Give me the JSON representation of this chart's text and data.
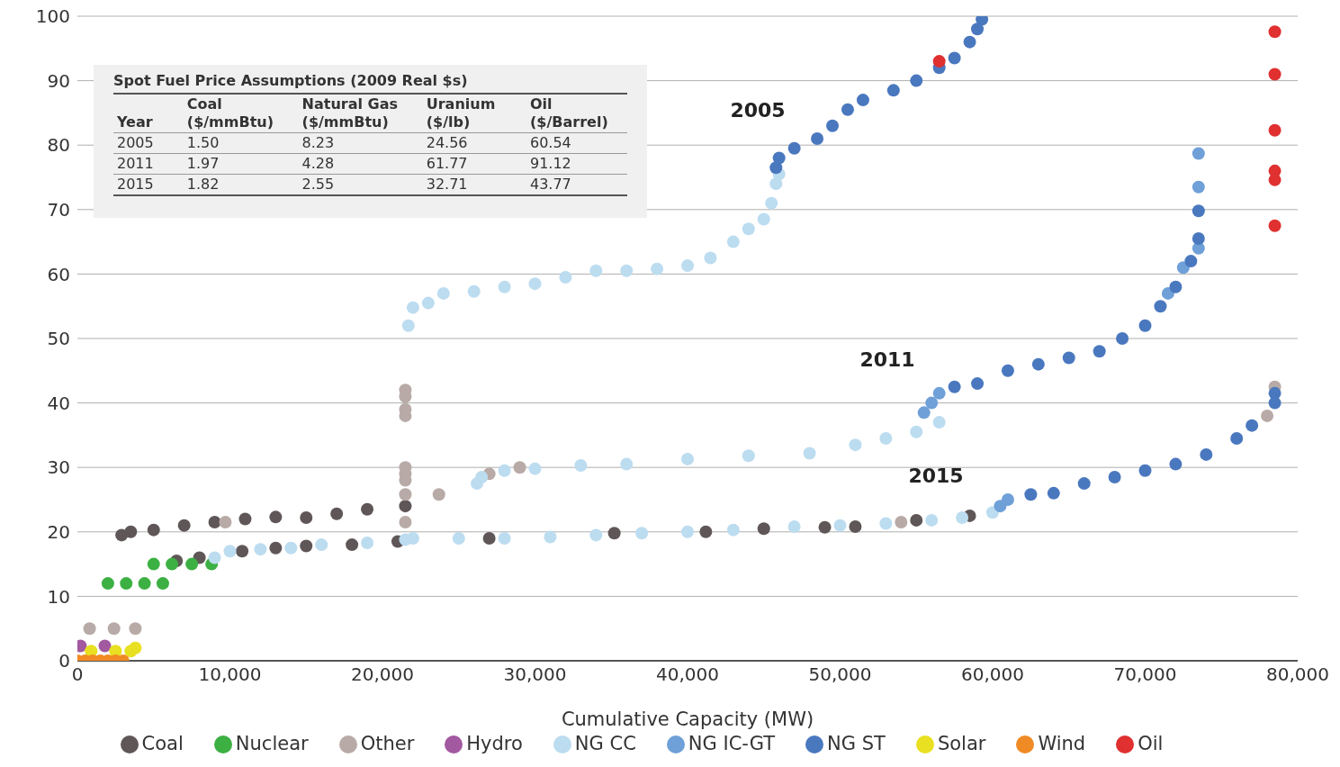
{
  "chart_data": {
    "type": "scatter",
    "xlabel": "Cumulative Capacity (MW)",
    "xlim": [
      0,
      80000
    ],
    "ylim": [
      0,
      100
    ],
    "xticks": [
      0,
      {
        "value": 10000,
        "label": "10,000"
      },
      {
        "value": 20000,
        "label": "20,000"
      },
      {
        "value": 30000,
        "label": "30,000"
      },
      {
        "value": 40000,
        "label": "40,000"
      },
      {
        "value": 50000,
        "label": "50,000"
      },
      {
        "value": 60000,
        "label": "60,000"
      },
      {
        "value": 70000,
        "label": "70,000"
      },
      {
        "value": 80000,
        "label": "80,000"
      }
    ],
    "yticks": [
      0,
      10,
      20,
      30,
      40,
      50,
      60,
      70,
      80,
      90,
      100
    ],
    "grid": "y",
    "legend": "bottom",
    "marker": "circle",
    "series": [
      {
        "name": "Coal",
        "color": "#5f5657",
        "x": [
          2900,
          3500,
          5000,
          7000,
          9000,
          11000,
          13000,
          15000,
          17000,
          19000,
          21500,
          6500,
          8000,
          10800,
          13000,
          15000,
          18000,
          21000,
          27000,
          35200,
          41200,
          45000,
          49000,
          51000,
          55000,
          58500
        ],
        "values": [
          19.5,
          20,
          20.3,
          21,
          21.5,
          22,
          22.3,
          22.2,
          22.8,
          23.5,
          24,
          15.5,
          16,
          17,
          17.5,
          17.8,
          18,
          18.5,
          19,
          19.8,
          20,
          20.5,
          20.7,
          20.8,
          21.8,
          22.5
        ]
      },
      {
        "name": "Nuclear",
        "color": "#3cb043",
        "x": [
          2000,
          3200,
          4400,
          5600,
          5000,
          6200,
          7500,
          8800
        ],
        "values": [
          12,
          12,
          12,
          12,
          15,
          15,
          15,
          15
        ]
      },
      {
        "name": "Other",
        "color": "#b8aaa6",
        "x": [
          800,
          2400,
          3800,
          9700,
          21500,
          21500,
          21500,
          21500,
          21500,
          21500,
          21500,
          21500,
          21500,
          23700,
          27000,
          29000,
          54000,
          78000,
          78500
        ],
        "values": [
          5,
          5,
          5,
          21.5,
          42,
          41,
          39,
          38,
          30,
          29,
          28,
          25.8,
          21.5,
          25.8,
          29,
          30,
          21.5,
          38,
          42.5
        ]
      },
      {
        "name": "Hydro",
        "color": "#a259a0",
        "x": [
          200,
          1800
        ],
        "values": [
          2.3,
          2.3
        ]
      },
      {
        "name": "NG CC",
        "color": "#bcdcf0",
        "x": [
          21700,
          22000,
          23000,
          24000,
          26000,
          28000,
          30000,
          32000,
          34000,
          36000,
          38000,
          40000,
          41500,
          43000,
          44000,
          45000,
          45500,
          45800,
          46000,
          26200,
          26500,
          28000,
          30000,
          33000,
          36000,
          40000,
          44000,
          48000,
          51000,
          53000,
          55000,
          56500,
          9000,
          10000,
          12000,
          14000,
          16000,
          19000,
          21500,
          22000,
          25000,
          28000,
          31000,
          34000,
          37000,
          40000,
          43000,
          47000,
          50000,
          53000,
          56000,
          58000,
          60000
        ],
        "values": [
          52,
          54.8,
          55.5,
          57,
          57.3,
          58,
          58.5,
          59.5,
          60.5,
          60.5,
          60.8,
          61.3,
          62.5,
          65,
          67,
          68.5,
          71,
          74,
          75.5,
          27.5,
          28.5,
          29.5,
          29.8,
          30.3,
          30.5,
          31.3,
          31.8,
          32.2,
          33.5,
          34.5,
          35.5,
          37,
          16,
          17,
          17.3,
          17.5,
          18,
          18.3,
          18.8,
          19,
          19,
          19,
          19.2,
          19.5,
          19.8,
          20,
          20.3,
          20.8,
          21,
          21.3,
          21.8,
          22.2,
          23
        ]
      },
      {
        "name": "NG IC-GT",
        "color": "#6fa0d8",
        "x": [
          55500,
          56000,
          56500,
          71500,
          72500,
          73500,
          73500,
          73500,
          60500,
          61000
        ],
        "values": [
          38.5,
          40,
          41.5,
          57,
          61,
          64,
          73.5,
          78.7,
          24,
          25
        ]
      },
      {
        "name": "NG ST",
        "color": "#4a78bf",
        "x": [
          45800,
          46000,
          47000,
          48500,
          49500,
          50500,
          51500,
          53500,
          55000,
          56500,
          57500,
          58500,
          59000,
          59300,
          57500,
          59000,
          61000,
          63000,
          65000,
          67000,
          68500,
          70000,
          71000,
          72000,
          73000,
          73500,
          73500,
          62500,
          64000,
          66000,
          68000,
          70000,
          72000,
          74000,
          76000,
          77000,
          78500,
          78500
        ],
        "values": [
          76.5,
          78,
          79.5,
          81,
          83,
          85.5,
          87,
          88.5,
          90,
          92,
          93.5,
          96,
          98,
          99.5,
          42.5,
          43,
          45,
          46,
          47,
          48,
          50,
          52,
          55,
          58,
          62,
          65.5,
          69.8,
          25.8,
          26,
          27.5,
          28.5,
          29.5,
          30.5,
          32,
          34.5,
          36.5,
          40,
          41.5
        ]
      },
      {
        "name": "Solar",
        "color": "#e8e020",
        "x": [
          900,
          2500,
          3500,
          3800
        ],
        "values": [
          1.5,
          1.5,
          1.5,
          2
        ]
      },
      {
        "name": "Wind",
        "color": "#f08a24",
        "x": [
          0,
          500,
          1000,
          1500,
          2000,
          2500,
          3000
        ],
        "values": [
          0,
          0,
          0,
          0,
          0,
          0,
          0
        ]
      },
      {
        "name": "Oil",
        "color": "#e03030",
        "x": [
          56500,
          78500,
          78500,
          78500,
          78500,
          78500,
          78500
        ],
        "values": [
          93,
          97.6,
          91,
          82.3,
          76,
          74.6,
          67.5
        ]
      }
    ],
    "annotations": [
      "2005",
      "2011",
      "2015",
      "Spot Fuel Price Assumptions (2009 Real $s)",
      "Year",
      "Coal ($/mmBtu)",
      "Natural Gas ($/mmBtu)",
      "Uranium ($/lb)",
      "Oil ($/Barrel)",
      "2005",
      "1.50",
      "8.23",
      "24.56",
      "60.54",
      "2011",
      "1.97",
      "4.28",
      "61.77",
      "91.12",
      "2015",
      "1.82",
      "2.55",
      "32.71",
      "43.77"
    ]
  }
}
